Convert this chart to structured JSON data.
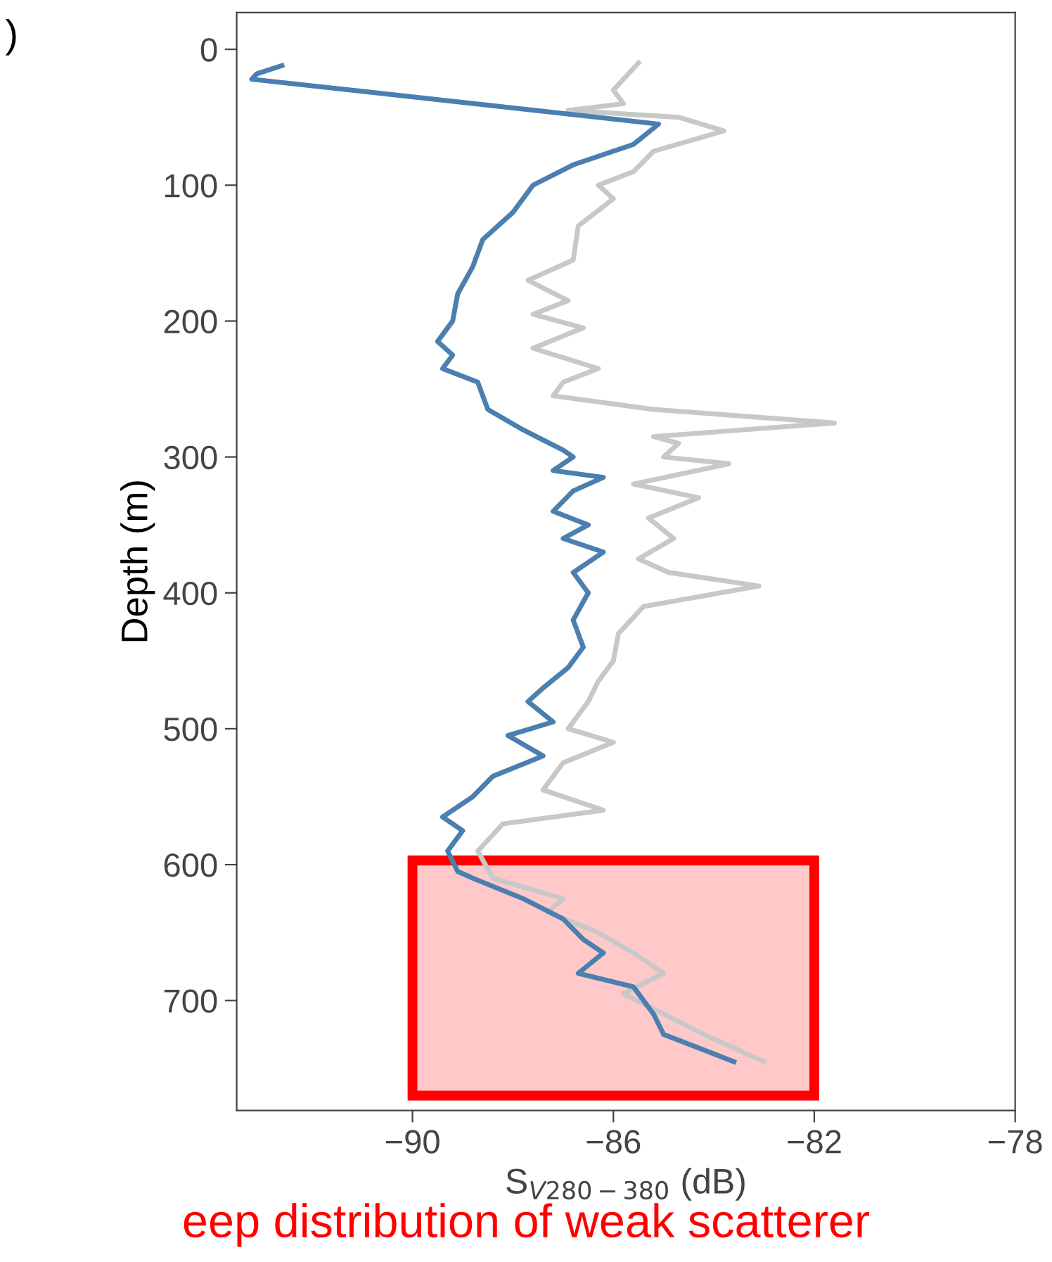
{
  "chart_data": {
    "type": "line",
    "ylabel": "Depth (m)",
    "xlabel": "S$_{V280−380}$ (dB)",
    "annotations": [
      ")",
      "eep distribution of weak scatterer"
    ],
    "xlim": [
      -93.5,
      -78
    ],
    "xticks": [
      -90,
      -86,
      -82,
      -78
    ],
    "ylim": [
      781,
      -27
    ],
    "yticks": [
      0,
      100,
      200,
      300,
      400,
      500,
      600,
      700
    ],
    "grid": false,
    "marker": "none",
    "line_style": "solid",
    "series": [
      {
        "color": "#c8c8c8",
        "values": [
          10,
          30,
          40,
          45,
          50,
          60,
          75,
          90,
          100,
          110,
          130,
          155,
          170,
          185,
          195,
          205,
          220,
          235,
          245,
          255,
          265,
          275,
          285,
          290,
          300,
          305,
          320,
          330,
          345,
          360,
          375,
          385,
          395,
          410,
          430,
          450,
          465,
          480,
          500,
          510,
          525,
          545,
          560,
          570,
          590,
          610,
          625,
          635,
          650,
          665,
          680,
          695,
          710,
          725,
          745
        ],
        "x": [
          -85.5,
          -86,
          -85.8,
          -86.9,
          -84.7,
          -83.8,
          -85.2,
          -85.6,
          -86.3,
          -86.0,
          -86.7,
          -86.8,
          -87.7,
          -86.9,
          -87.6,
          -86.6,
          -87.6,
          -86.3,
          -87.0,
          -87.2,
          -85.2,
          -81.6,
          -85.2,
          -84.7,
          -85.0,
          -83.7,
          -85.6,
          -84.3,
          -85.3,
          -84.8,
          -85.5,
          -84.9,
          -83.1,
          -85.4,
          -85.9,
          -86.0,
          -86.3,
          -86.5,
          -86.9,
          -86.0,
          -87.0,
          -87.4,
          -86.2,
          -88.2,
          -88.7,
          -88.4,
          -87.0,
          -87.3,
          -86.3,
          -85.6,
          -85.0,
          -85.8,
          -85.0,
          -84.2,
          -83.0
        ]
      },
      {
        "color": "#4a7fb0",
        "values": [
          12,
          18,
          22,
          55,
          70,
          85,
          100,
          120,
          140,
          160,
          180,
          200,
          215,
          225,
          235,
          245,
          265,
          280,
          295,
          300,
          310,
          315,
          325,
          340,
          350,
          360,
          370,
          385,
          400,
          420,
          440,
          455,
          470,
          480,
          495,
          505,
          520,
          535,
          550,
          565,
          575,
          590,
          605,
          610,
          625,
          640,
          655,
          665,
          680,
          690,
          710,
          725,
          735,
          745
        ],
        "x": [
          -92.6,
          -93.1,
          -93.2,
          -85.1,
          -85.6,
          -86.8,
          -87.6,
          -88.0,
          -88.6,
          -88.8,
          -89.1,
          -89.2,
          -89.5,
          -89.2,
          -89.4,
          -88.7,
          -88.5,
          -87.8,
          -87.0,
          -86.8,
          -87.2,
          -86.2,
          -86.8,
          -87.2,
          -86.5,
          -87.0,
          -86.2,
          -86.8,
          -86.5,
          -86.8,
          -86.6,
          -86.9,
          -87.4,
          -87.7,
          -87.2,
          -88.1,
          -87.4,
          -88.4,
          -88.8,
          -89.4,
          -89.0,
          -89.3,
          -89.1,
          -88.8,
          -87.8,
          -87.0,
          -86.6,
          -86.2,
          -86.7,
          -85.6,
          -85.2,
          -85.0,
          -84.3,
          -83.6
        ]
      }
    ]
  }
}
